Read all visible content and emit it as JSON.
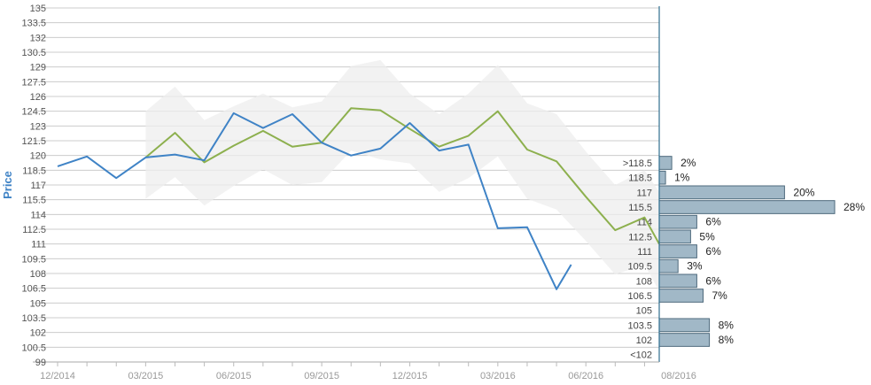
{
  "chart_data": {
    "type": "line",
    "ylabel": "Price",
    "yticks": [
      "135",
      "133.5",
      "132",
      "130.5",
      "129",
      "127.5",
      "126",
      "124.5",
      "123",
      "121.5",
      "120",
      "118.5",
      "117",
      "115.5",
      "114",
      "112.5",
      "111",
      "109.5",
      "108",
      "106.5",
      "105",
      "103.5",
      "102",
      "100.5",
      "99"
    ],
    "ylim": [
      99,
      135
    ],
    "xtick_labels": [
      "12/2014",
      "03/2015",
      "06/2015",
      "09/2015",
      "12/2015",
      "03/2016",
      "06/2016",
      "08/2016"
    ],
    "x_range": [
      0,
      20.5
    ],
    "xtick_positions": [
      0,
      3,
      6,
      9,
      12,
      15,
      18,
      20.5
    ],
    "grid": true,
    "colors": {
      "actual": "#3f83c6",
      "forecast": "#8db04e",
      "band": "#eeeeee",
      "hist_bar": "#a1b8c7",
      "hist_border": "#4e6a7c",
      "grid": "#cccccc",
      "axis": "#2f6f8f"
    },
    "series": [
      {
        "key": "actual",
        "x": [
          0,
          1,
          2,
          3,
          4,
          5,
          6,
          7,
          8,
          9,
          10,
          11,
          12,
          13,
          14,
          15,
          16,
          17,
          17.5
        ],
        "values": [
          118.9,
          119.9,
          117.7,
          119.8,
          120.1,
          119.5,
          124.3,
          122.8,
          124.2,
          121.3,
          120.0,
          120.7,
          123.3,
          120.5,
          121.1,
          112.6,
          112.7,
          106.4,
          108.9
        ]
      },
      {
        "key": "forecast",
        "x": [
          3,
          4,
          5,
          6,
          7,
          8,
          9,
          10,
          11,
          12,
          13,
          14,
          15,
          16,
          17,
          18,
          19,
          20,
          20.5
        ],
        "values": [
          119.8,
          122.3,
          119.3,
          121.0,
          122.5,
          120.9,
          121.3,
          124.8,
          124.6,
          122.7,
          120.9,
          122.0,
          124.5,
          120.6,
          119.4,
          115.8,
          112.4,
          113.7,
          111.0
        ]
      },
      {
        "key": "band",
        "x": [
          3,
          4,
          5,
          6,
          7,
          8,
          9,
          10,
          11,
          12,
          13,
          14,
          15,
          16,
          17,
          18,
          19,
          20,
          20.5
        ],
        "upper": [
          124.5,
          127.0,
          123.6,
          125.0,
          126.3,
          124.9,
          125.5,
          129.1,
          129.7,
          126.3,
          124.2,
          126.3,
          129.2,
          125.3,
          124.2,
          120.4,
          117.0,
          118.5,
          116.3
        ],
        "lower": [
          115.6,
          117.8,
          114.9,
          116.9,
          118.6,
          117.0,
          117.3,
          120.5,
          119.6,
          119.2,
          116.3,
          117.7,
          119.9,
          115.6,
          114.5,
          111.3,
          107.9,
          108.9,
          106.2
        ]
      }
    ],
    "histogram": {
      "bins": [
        {
          "label": ">118.5",
          "pct_label": "2%",
          "value": 2,
          "lo": 118.5,
          "hi": 120.0
        },
        {
          "label": "118.5",
          "pct_label": "1%",
          "value": 1,
          "lo": 117.0,
          "hi": 118.5
        },
        {
          "label": "117",
          "pct_label": "20%",
          "value": 20,
          "lo": 115.5,
          "hi": 117.0
        },
        {
          "label": "115.5",
          "pct_label": "28%",
          "value": 28,
          "lo": 114.0,
          "hi": 115.5
        },
        {
          "label": "114",
          "pct_label": "6%",
          "value": 6,
          "lo": 112.5,
          "hi": 114.0
        },
        {
          "label": "112.5",
          "pct_label": "5%",
          "value": 5,
          "lo": 111.0,
          "hi": 112.5
        },
        {
          "label": "111",
          "pct_label": "6%",
          "value": 6,
          "lo": 109.5,
          "hi": 111.0
        },
        {
          "label": "109.5",
          "pct_label": "3%",
          "value": 3,
          "lo": 108.0,
          "hi": 109.5
        },
        {
          "label": "108",
          "pct_label": "6%",
          "value": 6,
          "lo": 106.5,
          "hi": 108.0
        },
        {
          "label": "106.5",
          "pct_label": "7%",
          "value": 7,
          "lo": 105.0,
          "hi": 106.5
        },
        {
          "label": "105",
          "pct_label": "",
          "value": 0,
          "lo": 103.5,
          "hi": 105.0
        },
        {
          "label": "103.5",
          "pct_label": "8%",
          "value": 8,
          "lo": 102.0,
          "hi": 103.5
        },
        {
          "label": "102",
          "pct_label": "8%",
          "value": 8,
          "lo": 100.5,
          "hi": 102.0
        },
        {
          "label": "<102",
          "pct_label": "",
          "value": 0,
          "lo": 99.0,
          "hi": 100.5
        }
      ]
    }
  }
}
